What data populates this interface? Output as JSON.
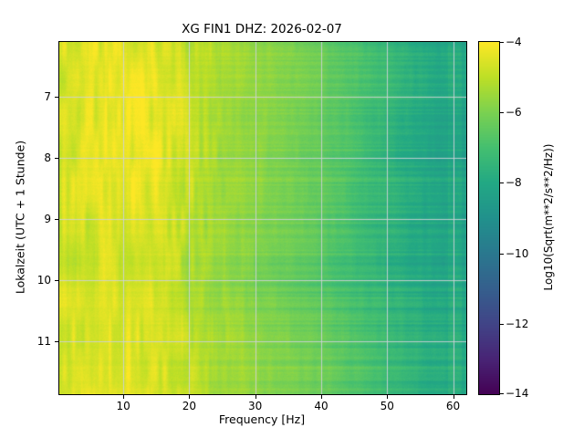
{
  "chart_data": {
    "type": "heatmap",
    "title": "XG FIN1  DHZ: 2026-02-07",
    "xlabel": "Frequency [Hz]",
    "ylabel": "Lokalzeit (UTC + 1 Stunde)",
    "colorbar_label": "Log10(Sqrt(m**2/s**2/Hz))",
    "colormap": "viridis",
    "grid": true,
    "x_range": [
      0.3,
      62.0
    ],
    "y_range": [
      6.1,
      11.87
    ],
    "x_ticks": [
      10,
      20,
      30,
      40,
      50,
      60
    ],
    "x_tick_labels": [
      "10",
      "20",
      "30",
      "40",
      "50",
      "60"
    ],
    "y_ticks": [
      7,
      8,
      9,
      10,
      11
    ],
    "y_tick_labels": [
      "7",
      "8",
      "9",
      "10",
      "11"
    ],
    "value_range": [
      -14,
      -4
    ],
    "colorbar_ticks": [
      -4,
      -6,
      -8,
      -10,
      -12,
      -14
    ],
    "colorbar_tick_labels": [
      "−4",
      "−6",
      "−8",
      "−10",
      "−12",
      "−14"
    ],
    "x": [
      1,
      5,
      10,
      15,
      20,
      25,
      30,
      35,
      40,
      45,
      50,
      55,
      60,
      62
    ],
    "y": [
      6.5,
      7.0,
      7.5,
      8.0,
      8.5,
      9.0,
      9.5,
      10.0,
      10.5,
      11.0,
      11.5,
      11.8
    ],
    "values": [
      [
        -4.6,
        -4.5,
        -4.4,
        -4.5,
        -4.9,
        -5.3,
        -5.6,
        -5.9,
        -6.3,
        -6.8,
        -7.3,
        -7.8,
        -8.1,
        -8.2
      ],
      [
        -4.7,
        -4.5,
        -4.3,
        -4.3,
        -4.9,
        -5.4,
        -5.7,
        -6.0,
        -6.4,
        -6.9,
        -7.4,
        -7.9,
        -8.2,
        -8.3
      ],
      [
        -4.6,
        -4.4,
        -4.2,
        -4.3,
        -4.8,
        -5.3,
        -5.6,
        -5.9,
        -6.3,
        -6.8,
        -7.4,
        -7.9,
        -8.2,
        -8.3
      ],
      [
        -4.7,
        -4.5,
        -4.3,
        -4.2,
        -4.9,
        -5.4,
        -5.7,
        -6.0,
        -6.4,
        -6.9,
        -7.5,
        -8.0,
        -8.3,
        -8.4
      ],
      [
        -4.7,
        -4.6,
        -4.4,
        -4.3,
        -5.0,
        -5.4,
        -5.7,
        -6.1,
        -6.5,
        -7.0,
        -7.5,
        -8.0,
        -8.3,
        -8.4
      ],
      [
        -4.7,
        -4.6,
        -4.4,
        -4.4,
        -5.0,
        -5.5,
        -5.8,
        -6.1,
        -6.5,
        -7.0,
        -7.5,
        -8.0,
        -8.3,
        -8.4
      ],
      [
        -4.8,
        -4.7,
        -4.6,
        -4.6,
        -5.1,
        -5.5,
        -5.8,
        -6.1,
        -6.5,
        -7.0,
        -7.5,
        -7.9,
        -8.2,
        -8.3
      ],
      [
        -4.8,
        -4.7,
        -4.6,
        -4.7,
        -5.2,
        -5.7,
        -6.1,
        -6.4,
        -6.8,
        -7.2,
        -7.6,
        -8.0,
        -8.2,
        -8.3
      ],
      [
        -4.7,
        -4.6,
        -4.5,
        -4.6,
        -5.1,
        -5.5,
        -5.8,
        -6.1,
        -6.4,
        -6.9,
        -7.4,
        -7.8,
        -8.1,
        -8.2
      ],
      [
        -4.7,
        -4.6,
        -4.5,
        -4.6,
        -5.0,
        -5.4,
        -5.7,
        -6.0,
        -6.4,
        -6.8,
        -7.3,
        -7.7,
        -8.0,
        -8.1
      ],
      [
        -4.6,
        -4.5,
        -4.4,
        -4.5,
        -5.0,
        -5.4,
        -5.7,
        -6.0,
        -6.3,
        -6.8,
        -7.3,
        -7.7,
        -8.0,
        -8.1
      ],
      [
        -4.6,
        -4.5,
        -4.4,
        -4.5,
        -5.0,
        -5.4,
        -5.7,
        -6.0,
        -6.3,
        -6.8,
        -7.3,
        -7.7,
        -8.0,
        -8.1
      ]
    ]
  }
}
